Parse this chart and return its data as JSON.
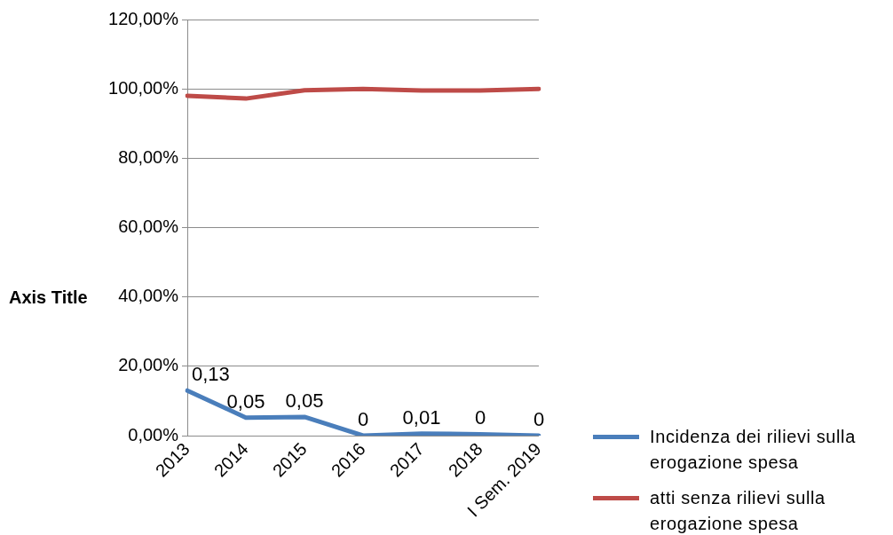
{
  "chart_data": {
    "type": "line",
    "ylabel": "Axis Title",
    "categories": [
      "2013",
      "2014",
      "2015",
      "2016",
      "2017",
      "2018",
      "I Sem. 2019"
    ],
    "series": [
      {
        "name": "Incidenza dei rilievi sulla erogazione spesa",
        "color": "#4a7ebb",
        "values": [
          0.13,
          0.052,
          0.054,
          0,
          0.006,
          0.004,
          0
        ],
        "value_labels": [
          "0,13",
          "0,05",
          "0,05",
          "0",
          "0,01",
          "0",
          "0"
        ]
      },
      {
        "name": "atti senza rilievi sulla erogazione spesa",
        "color": "#be4b48",
        "values": [
          0.98,
          0.972,
          0.996,
          1.0,
          0.995,
          0.995,
          1.0
        ]
      }
    ],
    "ylim": [
      0,
      1.2
    ],
    "yticks": [
      {
        "value": 0,
        "label": "0,00%"
      },
      {
        "value": 0.2,
        "label": "20,00%"
      },
      {
        "value": 0.4,
        "label": "40,00%"
      },
      {
        "value": 0.6,
        "label": "60,00%"
      },
      {
        "value": 0.8,
        "label": "80,00%"
      },
      {
        "value": 1,
        "label": "100,00%"
      },
      {
        "value": 1.2,
        "label": "120,00%"
      }
    ],
    "grid": "y",
    "legend": "right"
  }
}
